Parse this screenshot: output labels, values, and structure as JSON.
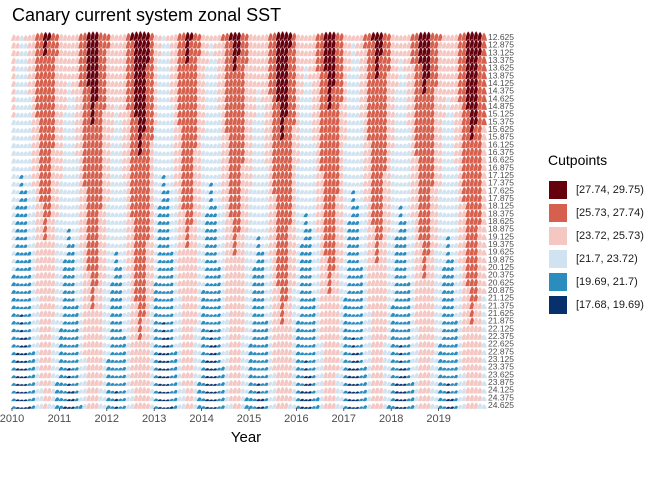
{
  "chart_data": {
    "type": "ridgeline",
    "title": "Canary current system zonal SST",
    "xlabel": "Year",
    "ylabel": "",
    "x_ticks": [
      "2010",
      "2011",
      "2012",
      "2013",
      "2014",
      "2015",
      "2016",
      "2017",
      "2018",
      "2019"
    ],
    "xlim": [
      2010,
      2020
    ],
    "y_ticks": [
      "12.625",
      "12.875",
      "13.125",
      "13.375",
      "13.625",
      "13.875",
      "14.125",
      "14.375",
      "14.625",
      "14.875",
      "15.125",
      "15.375",
      "15.625",
      "15.875",
      "16.125",
      "16.375",
      "16.625",
      "16.875",
      "17.125",
      "17.375",
      "17.625",
      "17.875",
      "18.125",
      "18.375",
      "18.625",
      "18.875",
      "19.125",
      "19.375",
      "19.625",
      "19.875",
      "20.125",
      "20.375",
      "20.625",
      "20.875",
      "21.125",
      "21.375",
      "21.625",
      "21.875",
      "22.125",
      "22.375",
      "22.625",
      "22.875",
      "23.125",
      "23.375",
      "23.625",
      "23.875",
      "24.125",
      "24.375",
      "24.625"
    ],
    "legend": {
      "title": "Cutpoints",
      "position": "right",
      "entries": [
        {
          "label": "[27.74, 29.75)",
          "color": "#67000d"
        },
        {
          "label": "[25.73, 27.74)",
          "color": "#d6604d"
        },
        {
          "label": "[23.72, 25.73)",
          "color": "#f4c7c3"
        },
        {
          "label": "[21.7, 23.72)",
          "color": "#d1e2f0"
        },
        {
          "label": "[19.69, 21.7)",
          "color": "#2b8cbe"
        },
        {
          "label": "[17.68, 19.69)",
          "color": "#08306b"
        }
      ]
    },
    "grid": false
  }
}
